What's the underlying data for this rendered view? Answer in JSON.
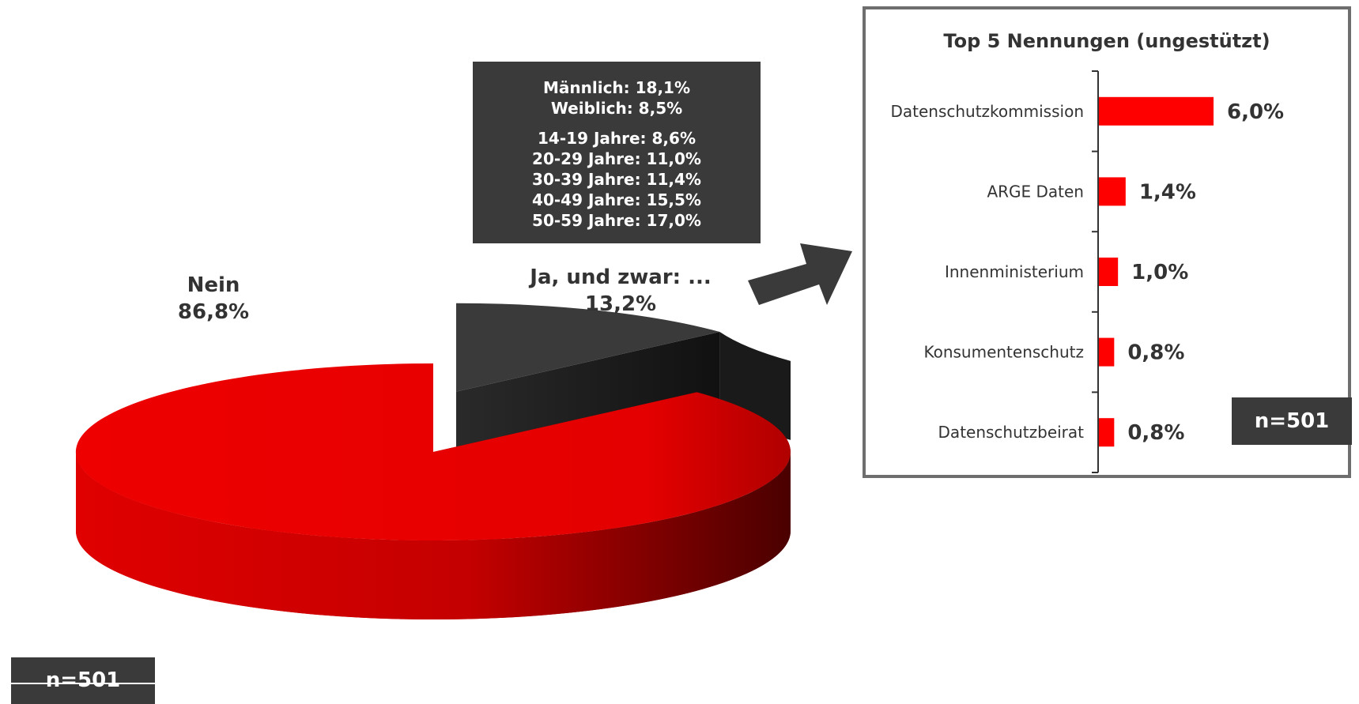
{
  "chart_data": [
    {
      "type": "pie",
      "slices": [
        {
          "label": "Nein",
          "value": 86.8,
          "value_label": "86,8%",
          "color": "#e60000"
        },
        {
          "label": "Ja, und zwar: ...",
          "value": 13.2,
          "value_label": "13,2%",
          "color": "#3a3a3a"
        }
      ],
      "n_label": "n=501"
    },
    {
      "type": "bar",
      "orientation": "horizontal",
      "title": "Top 5 Nennungen (ungestützt)",
      "categories": [
        "Datenschutzkommission",
        "ARGE Daten",
        "Innenministerium",
        "Konsumentenschutz",
        "Datenschutzbeirat"
      ],
      "values": [
        6.0,
        1.4,
        1.0,
        0.8,
        0.8
      ],
      "value_labels": [
        "6,0%",
        "1,4%",
        "1,0%",
        "0,8%",
        "0,8%"
      ],
      "color": "#ff0000",
      "n_label": "n=501"
    }
  ],
  "demographics": {
    "gender": [
      "Männlich: 18,1%",
      "Weiblich: 8,5%"
    ],
    "age": [
      "14-19 Jahre: 8,6%",
      "20-29 Jahre: 11,0%",
      "30-39 Jahre: 11,4%",
      "40-49 Jahre: 15,5%",
      "50-59 Jahre: 17,0%"
    ]
  },
  "colors": {
    "accent": "#e60000",
    "dark": "#3a3a3a",
    "border": "#6e6e6e"
  },
  "icons": {
    "connector": "arrow-right-icon"
  }
}
